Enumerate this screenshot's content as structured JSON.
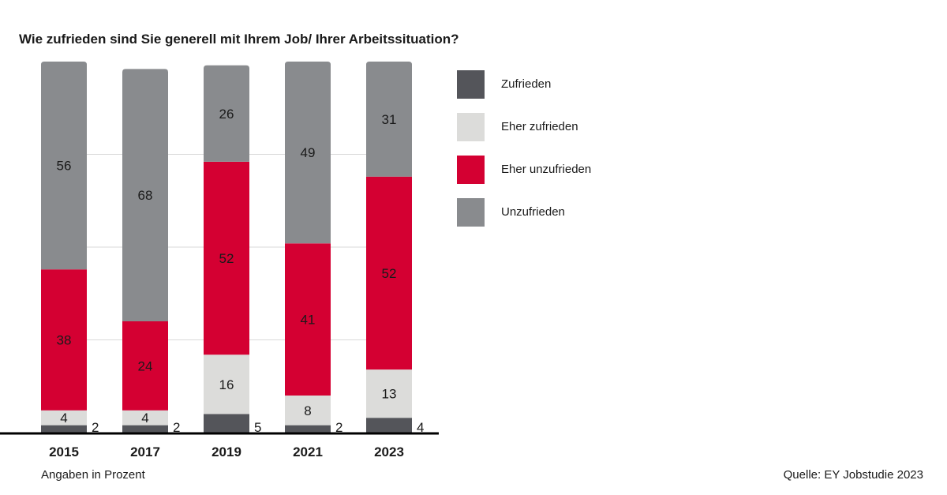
{
  "title": "Wie zufrieden sind Sie generell mit Ihrem Job/ Ihrer Arbeitssituation?",
  "footnote": "Angaben in Prozent",
  "source": "Quelle: EY Jobstudie 2023",
  "colors": {
    "zufrieden": "#54555a",
    "eher_zufrieden": "#dcdcda",
    "eher_unzufrieden": "#d40032",
    "unzufrieden": "#898b8e"
  },
  "legend": [
    {
      "label": "Zufrieden",
      "color": "#54555a"
    },
    {
      "label": "Eher zufrieden",
      "color": "#dcdcda"
    },
    {
      "label": "Eher unzufrieden",
      "color": "#d40032"
    },
    {
      "label": "Unzufrieden",
      "color": "#898b8e"
    }
  ],
  "chart_data": {
    "type": "bar",
    "stacked": true,
    "categories": [
      "2015",
      "2017",
      "2019",
      "2021",
      "2023"
    ],
    "series": [
      {
        "name": "Zufrieden",
        "values": [
          2,
          2,
          5,
          2,
          4
        ],
        "color": "#54555a"
      },
      {
        "name": "Eher zufrieden",
        "values": [
          4,
          4,
          16,
          8,
          13
        ],
        "color": "#dcdcda"
      },
      {
        "name": "Eher unzufrieden",
        "values": [
          38,
          24,
          52,
          41,
          52
        ],
        "color": "#d40032"
      },
      {
        "name": "Unzufrieden",
        "values": [
          56,
          68,
          26,
          49,
          31
        ],
        "color": "#898b8e"
      }
    ],
    "ylim": [
      0,
      100
    ],
    "grid": true,
    "legend_position": "right"
  }
}
